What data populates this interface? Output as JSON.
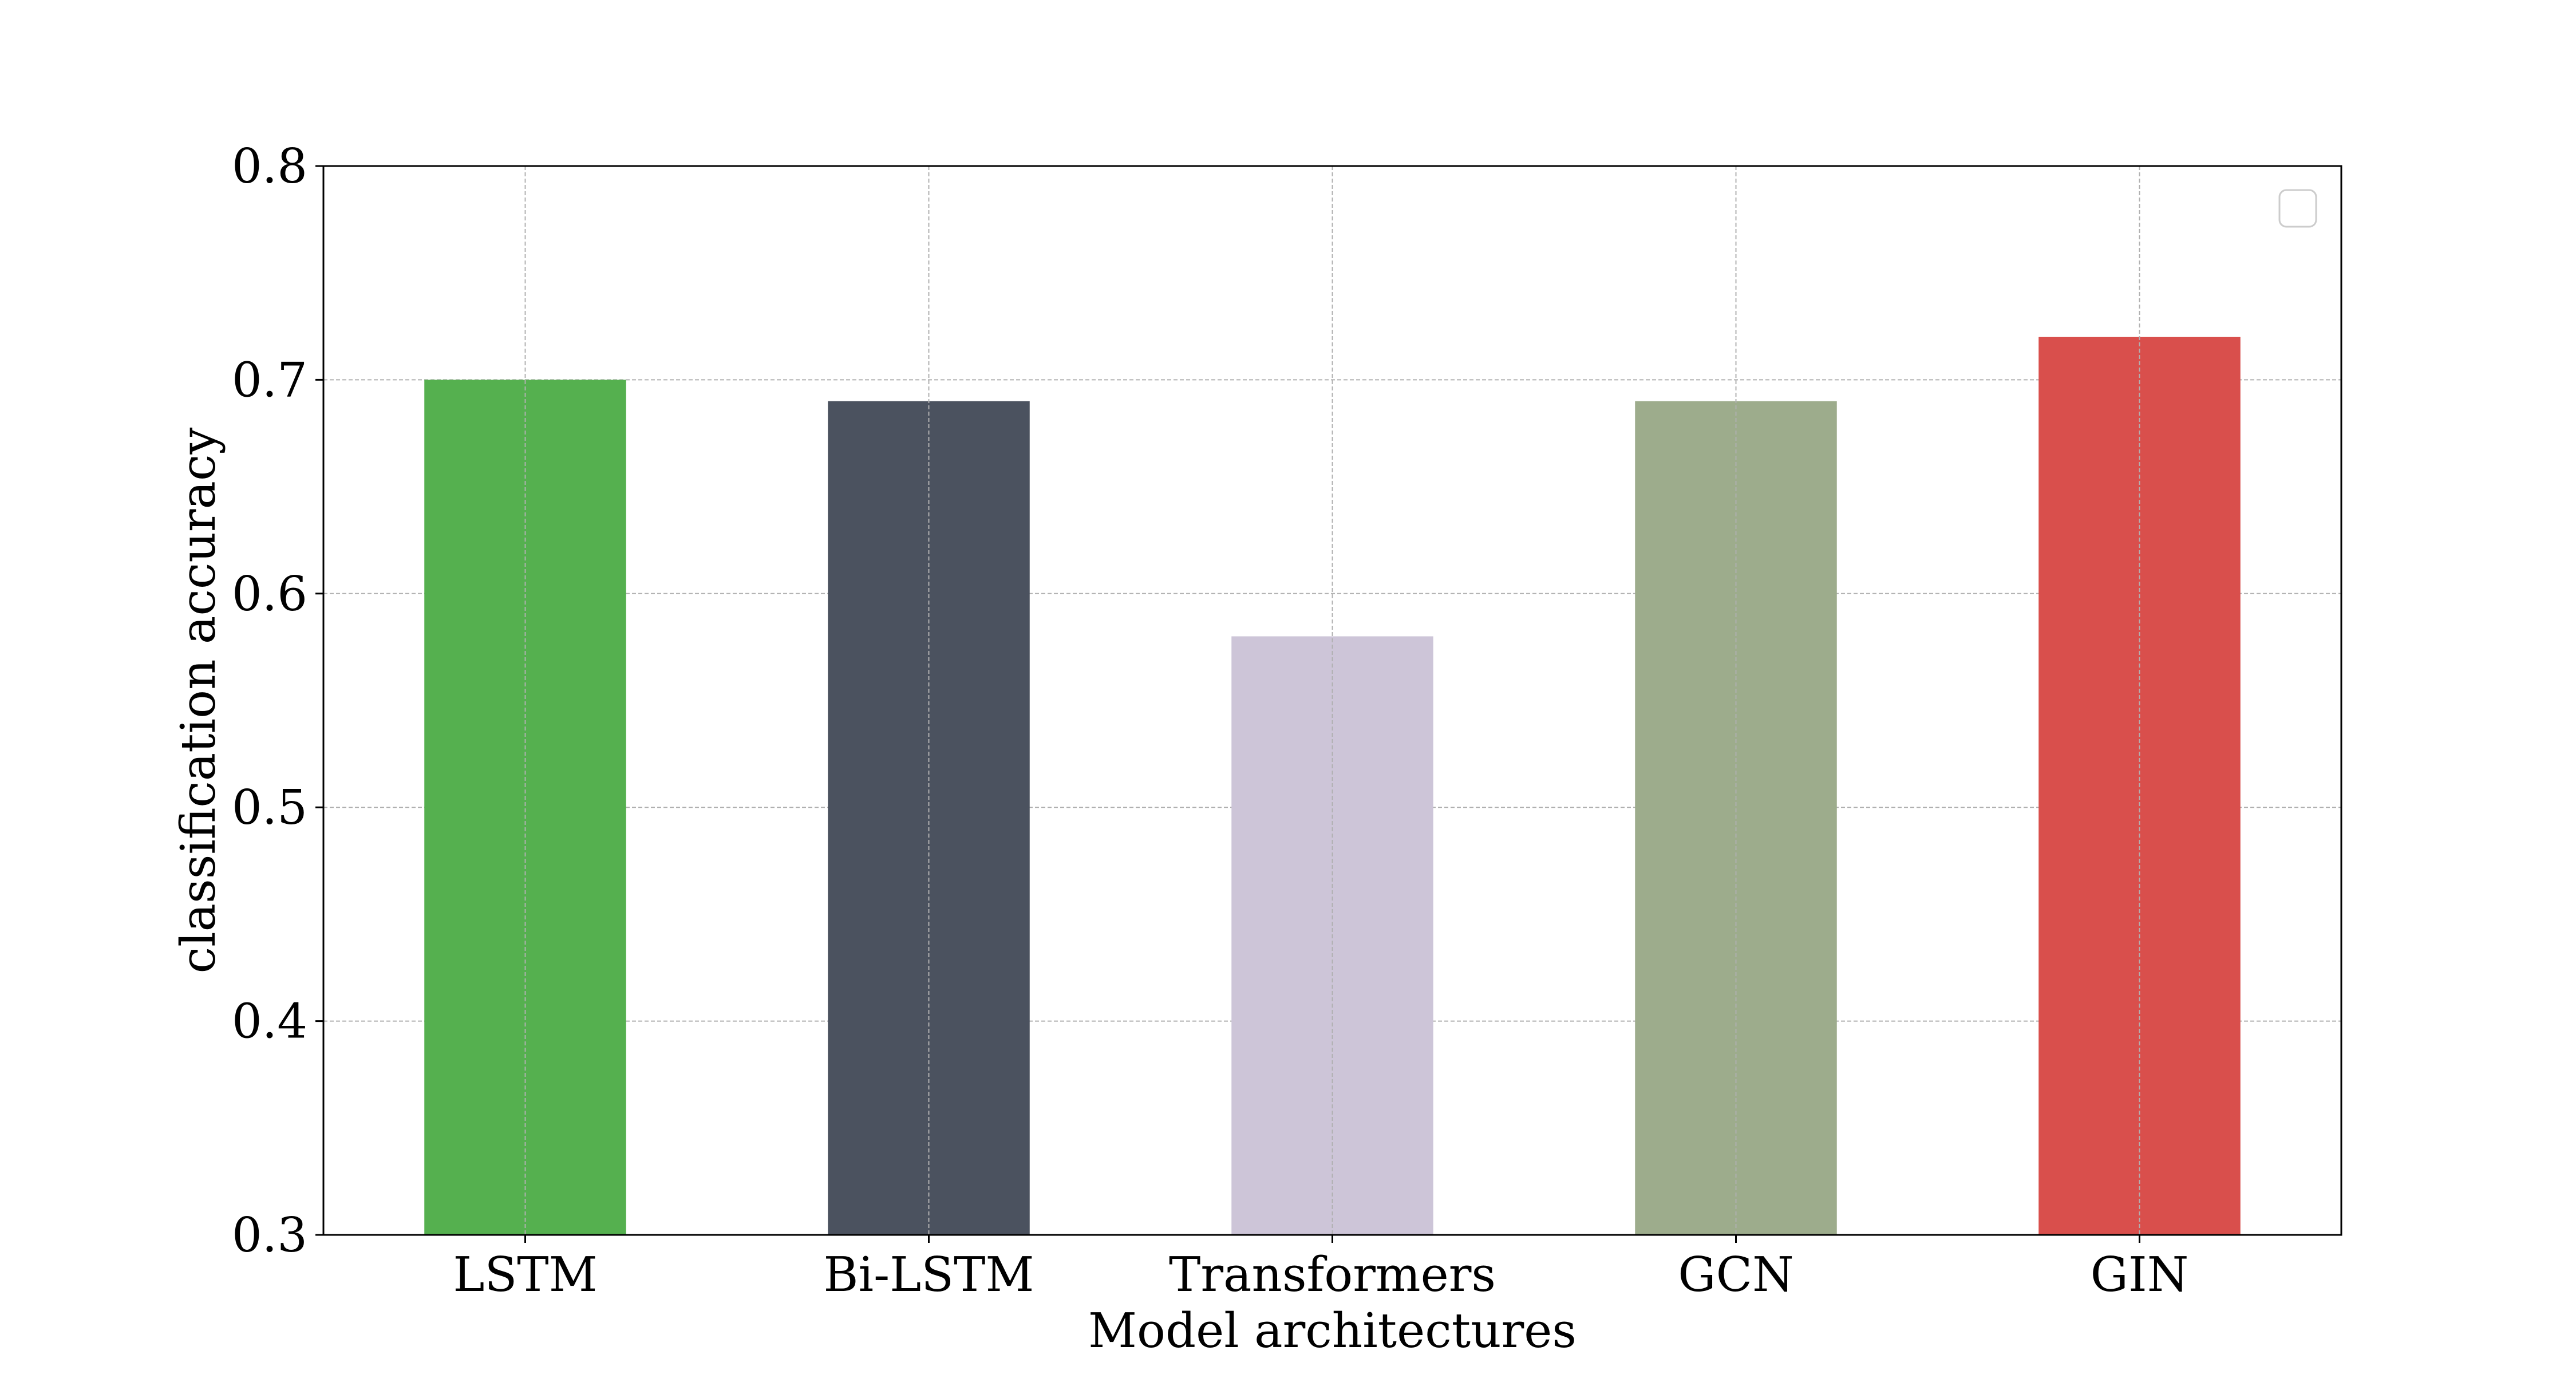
{
  "chart_data": {
    "type": "bar",
    "categories": [
      "LSTM",
      "Bi-LSTM",
      "Transformers",
      "GCN",
      "GIN"
    ],
    "values": [
      0.7,
      0.69,
      0.58,
      0.69,
      0.72
    ],
    "colors": [
      "#55b04f",
      "#4b525f",
      "#cdc5d8",
      "#9dac8c",
      "#d94f4c"
    ],
    "title": "",
    "xlabel": "Model architectures",
    "ylabel": "classification accuracy",
    "ylim": [
      0.3,
      0.8
    ],
    "yticks": [
      "0.3",
      "0.4",
      "0.5",
      "0.6",
      "0.7",
      "0.8"
    ],
    "grid": true,
    "legend": {
      "placement": "top-right",
      "entries": []
    }
  }
}
